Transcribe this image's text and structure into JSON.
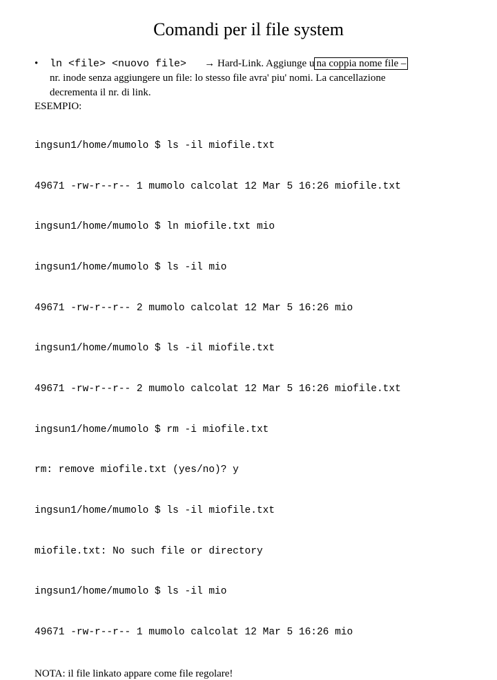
{
  "title": "Comandi per il file system",
  "bullet": {
    "cmd": "ln <file> <nuovo file>",
    "arrow": "→",
    "desc_before_box": "Hard-Link. Aggiunge u",
    "desc_box": "na coppia nome file –",
    "cont1": "nr. inode senza aggiungere un file: lo stesso file avra' piu' nomi. La cancellazione",
    "cont2": "decrementa il nr. di link."
  },
  "esempio_label": "ESEMPIO:",
  "terminal_lines": [
    "ingsun1/home/mumolo $ ls -il miofile.txt",
    "49671 -rw-r--r-- 1 mumolo calcolat 12 Mar 5 16:26 miofile.txt",
    "ingsun1/home/mumolo $ ln miofile.txt mio",
    "ingsun1/home/mumolo $ ls -il mio",
    "49671 -rw-r--r-- 2 mumolo calcolat 12 Mar 5 16:26 mio",
    "ingsun1/home/mumolo $ ls -il miofile.txt",
    "49671 -rw-r--r-- 2 mumolo calcolat 12 Mar 5 16:26 miofile.txt",
    "ingsun1/home/mumolo $ rm -i miofile.txt",
    "rm: remove miofile.txt (yes/no)? y",
    "ingsun1/home/mumolo $ ls -il miofile.txt",
    "miofile.txt: No such file or directory",
    "ingsun1/home/mumolo $ ls -il mio",
    "49671 -rw-r--r-- 1 mumolo calcolat 12 Mar 5 16:26 mio"
  ],
  "nota": "NOTA: il file linkato appare come file regolare!"
}
